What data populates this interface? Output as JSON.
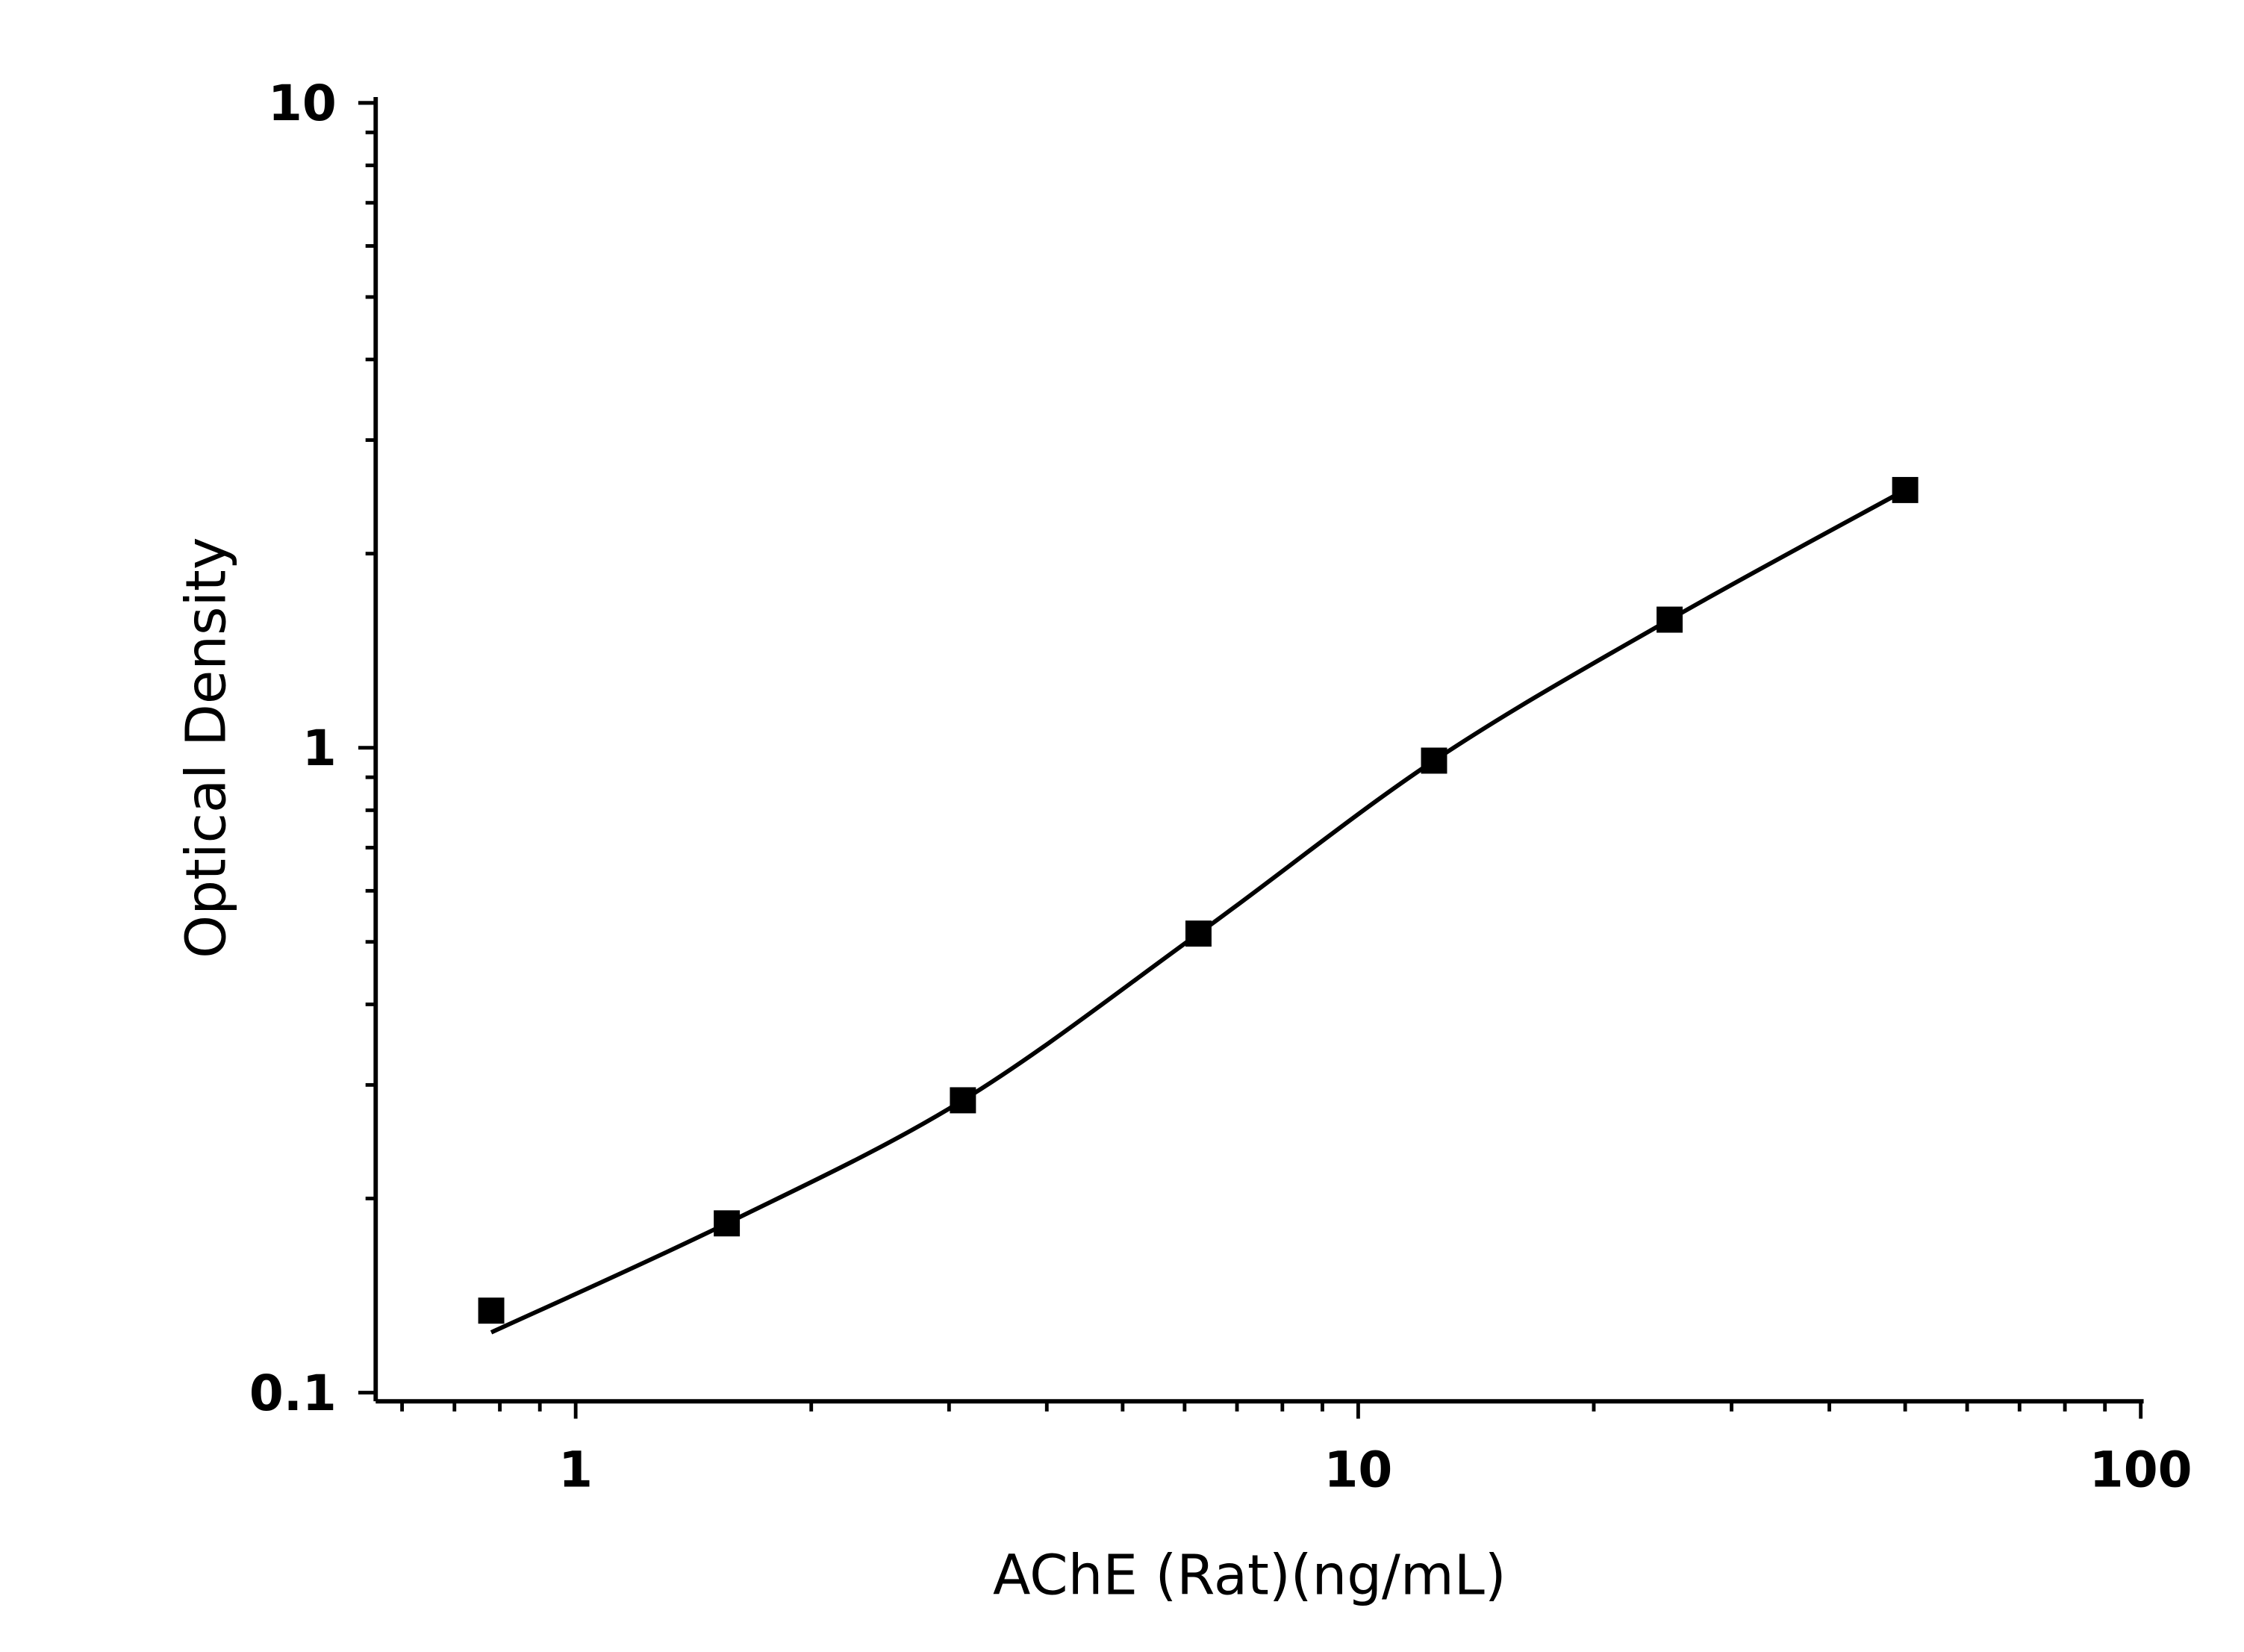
{
  "chart_data": {
    "type": "scatter",
    "title": "",
    "xlabel": "AChE (Rat)(ng/mL)",
    "ylabel": "Optical Density",
    "x_scale": "log",
    "y_scale": "log",
    "xlim": [
      0.555,
      100
    ],
    "ylim": [
      0.1,
      10
    ],
    "x_ticks": [
      "1",
      "10",
      "100"
    ],
    "y_ticks": [
      "0.1",
      "1",
      "10"
    ],
    "grid": false,
    "legend": "none",
    "marker": "square",
    "fit_line": true,
    "color": "#000000",
    "series": [
      {
        "x": [
          0.78,
          1.56,
          3.125,
          6.25,
          12.5,
          25,
          50
        ],
        "y": [
          0.134,
          0.183,
          0.284,
          0.515,
          0.955,
          1.58,
          2.51
        ]
      }
    ]
  }
}
